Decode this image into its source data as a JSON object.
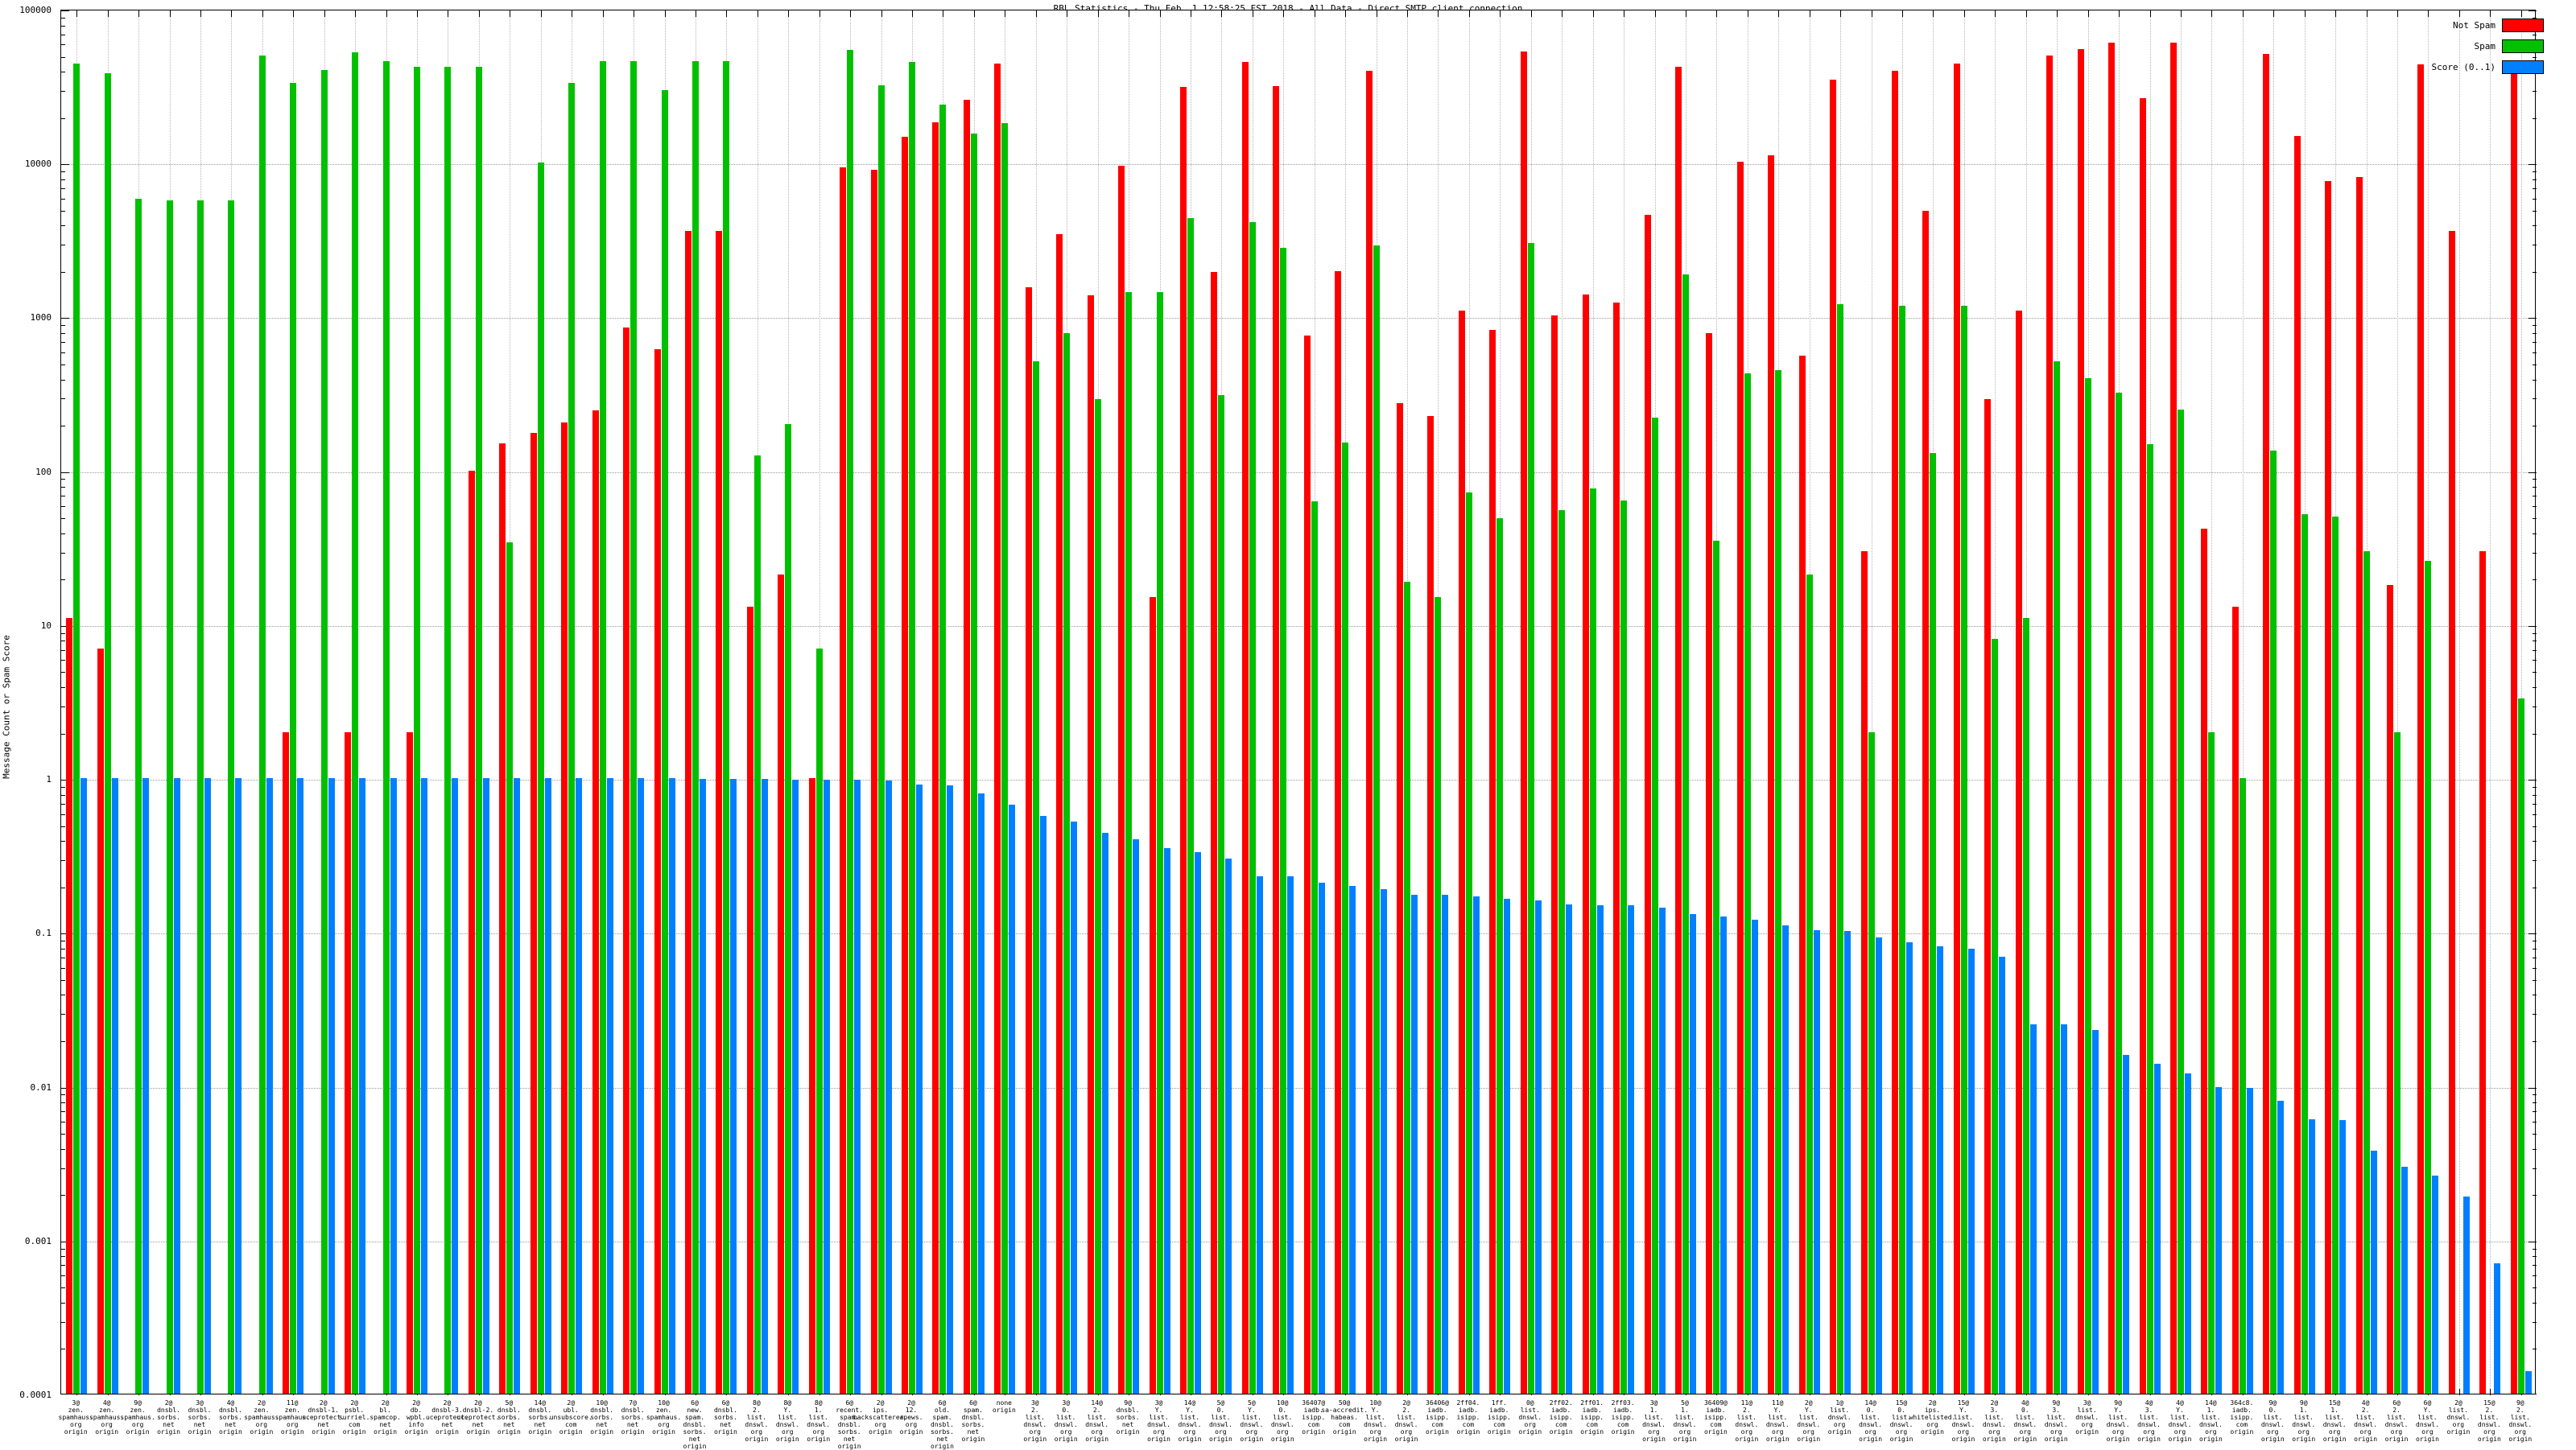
{
  "title": "RBL Statistics - Thu Feb  1 12:58:25 EST 2018 - All Data - Direct SMTP client connection",
  "y_axis": {
    "label": "Message Count or Spam Score",
    "ticks": [
      {
        "label": "100000",
        "value": 100000
      },
      {
        "label": "10000",
        "value": 10000
      },
      {
        "label": "1000",
        "value": 1000
      },
      {
        "label": "100",
        "value": 100
      },
      {
        "label": "10",
        "value": 10
      },
      {
        "label": "1",
        "value": 1
      },
      {
        "label": "0.1",
        "value": 0.1
      },
      {
        "label": "0.01",
        "value": 0.01
      },
      {
        "label": "0.001",
        "value": 0.001
      },
      {
        "label": "0.0001",
        "value": 0.0001
      }
    ]
  },
  "legend": [
    {
      "label": "Not Spam",
      "color": "#ff0000"
    },
    {
      "label": "Spam",
      "color": "#00c000"
    },
    {
      "label": "Score (0..1)",
      "color": "#0080ff"
    }
  ],
  "colors": {
    "not_spam": "#ff0000",
    "spam": "#00c000",
    "score": "#0080ff",
    "grid": "#9a9a9a"
  },
  "chart_data": {
    "type": "bar",
    "y_log": true,
    "ylim": [
      0.0001,
      100000
    ],
    "grid": true,
    "legend_position": "top-right",
    "series_names": [
      "Not Spam",
      "Spam",
      "Score (0..1)"
    ],
    "groups": [
      {
        "label_lines": [
          "3@",
          "zen.",
          "spamhaus.",
          "org",
          "origin"
        ],
        "not_spam": 11,
        "spam": 44000,
        "score": 1.0
      },
      {
        "label_lines": [
          "4@",
          "zen.",
          "spamhaus.",
          "org",
          "origin"
        ],
        "not_spam": 7,
        "spam": 38000,
        "score": 1.0
      },
      {
        "label_lines": [
          "9@",
          "zen.",
          "spamhaus.",
          "org",
          "origin"
        ],
        "not_spam": null,
        "spam": 5800,
        "score": 1.0
      },
      {
        "label_lines": [
          "2@",
          "dnsbl.",
          "sorbs.",
          "net",
          "origin"
        ],
        "not_spam": null,
        "spam": 5700,
        "score": 1.0
      },
      {
        "label_lines": [
          "3@",
          "dnsbl.",
          "sorbs.",
          "net",
          "origin"
        ],
        "not_spam": null,
        "spam": 5700,
        "score": 1.0
      },
      {
        "label_lines": [
          "4@",
          "dnsbl.",
          "sorbs.",
          "net",
          "origin"
        ],
        "not_spam": null,
        "spam": 5700,
        "score": 1.0
      },
      {
        "label_lines": [
          "2@",
          "zen.",
          "spamhaus.",
          "org",
          "origin"
        ],
        "not_spam": null,
        "spam": 50000,
        "score": 1.0
      },
      {
        "label_lines": [
          "11@",
          "zen.",
          "spamhaus.",
          "org",
          "origin"
        ],
        "not_spam": 2,
        "spam": 33000,
        "score": 1.0
      },
      {
        "label_lines": [
          "2@",
          "dnsbl-1.",
          "uceprotect.",
          "net",
          "origin"
        ],
        "not_spam": null,
        "spam": 40000,
        "score": 1.0
      },
      {
        "label_lines": [
          "2@",
          "psbl.",
          "surriel.",
          "com",
          "origin"
        ],
        "not_spam": 2,
        "spam": 52000,
        "score": 1.0
      },
      {
        "label_lines": [
          "2@",
          "bl.",
          "spamcop.",
          "net",
          "origin"
        ],
        "not_spam": null,
        "spam": 46000,
        "score": 1.0
      },
      {
        "label_lines": [
          "2@",
          "db.",
          "wpbl.",
          "info",
          "origin"
        ],
        "not_spam": 2,
        "spam": 42000,
        "score": 1.0
      },
      {
        "label_lines": [
          "2@",
          "dnsbl-3.",
          "uceprotect.",
          "net",
          "origin"
        ],
        "not_spam": null,
        "spam": 42000,
        "score": 1.0
      },
      {
        "label_lines": [
          "2@",
          "dnsbl-2.",
          "uceprotect.",
          "net",
          "origin"
        ],
        "not_spam": 100,
        "spam": 42000,
        "score": 1.0
      },
      {
        "label_lines": [
          "5@",
          "dnsbl.",
          "sorbs.",
          "net",
          "origin"
        ],
        "not_spam": 150,
        "spam": 34,
        "score": 1.0
      },
      {
        "label_lines": [
          "14@",
          "dnsbl.",
          "sorbs.",
          "net",
          "origin"
        ],
        "not_spam": 175,
        "spam": 10000,
        "score": 1.0
      },
      {
        "label_lines": [
          "2@",
          "ubl.",
          "unsubscore.",
          "com",
          "origin"
        ],
        "not_spam": 205,
        "spam": 33000,
        "score": 1.0
      },
      {
        "label_lines": [
          "10@",
          "dnsbl.",
          "sorbs.",
          "net",
          "origin"
        ],
        "not_spam": 245,
        "spam": 46000,
        "score": 1.0
      },
      {
        "label_lines": [
          "7@",
          "dnsbl.",
          "sorbs.",
          "net",
          "origin"
        ],
        "not_spam": 850,
        "spam": 46000,
        "score": 1.0
      },
      {
        "label_lines": [
          "10@",
          "zen.",
          "spamhaus.",
          "org",
          "origin"
        ],
        "not_spam": 615,
        "spam": 29500,
        "score": 1.0
      },
      {
        "label_lines": [
          "6@",
          "new.",
          "spam.",
          "dnsbl.",
          "sorbs.",
          "net",
          "origin"
        ],
        "not_spam": 3600,
        "spam": 46000,
        "score": 0.99
      },
      {
        "label_lines": [
          "6@",
          "dnsbl.",
          "sorbs.",
          "net",
          "origin"
        ],
        "not_spam": 3600,
        "spam": 46000,
        "score": 0.99
      },
      {
        "label_lines": [
          "8@",
          "2.",
          "list.",
          "dnswl.",
          "org",
          "origin"
        ],
        "not_spam": 13,
        "spam": 125,
        "score": 0.99
      },
      {
        "label_lines": [
          "8@",
          "Y.",
          "list.",
          "dnswl.",
          "org",
          "origin"
        ],
        "not_spam": 21,
        "spam": 200,
        "score": 0.98
      },
      {
        "label_lines": [
          "8@",
          "1.",
          "list.",
          "dnswl.",
          "org",
          "origin"
        ],
        "not_spam": 1,
        "spam": 7,
        "score": 0.98
      },
      {
        "label_lines": [
          "6@",
          "recent.",
          "spam.",
          "dnsbl.",
          "sorbs.",
          "net",
          "origin"
        ],
        "not_spam": 9300,
        "spam": 54000,
        "score": 0.98
      },
      {
        "label_lines": [
          "2@",
          "ips.",
          "backscatterer.",
          "org",
          "origin"
        ],
        "not_spam": 9000,
        "spam": 32000,
        "score": 0.97
      },
      {
        "label_lines": [
          "2@",
          "12.",
          "apews.",
          "org",
          "origin"
        ],
        "not_spam": 14700,
        "spam": 45000,
        "score": 0.91
      },
      {
        "label_lines": [
          "6@",
          "old.",
          "spam.",
          "dnsbl.",
          "sorbs.",
          "net",
          "origin"
        ],
        "not_spam": 18400,
        "spam": 24000,
        "score": 0.9
      },
      {
        "label_lines": [
          "6@",
          "spam.",
          "dnsbl.",
          "sorbs.",
          "net",
          "origin"
        ],
        "not_spam": 25600,
        "spam": 15400,
        "score": 0.8
      },
      {
        "label_lines": [
          "none",
          "origin"
        ],
        "not_spam": 44000,
        "spam": 18000,
        "score": 0.67
      },
      {
        "label_lines": [
          "3@",
          "2.",
          "list.",
          "dnswl.",
          "org",
          "origin"
        ],
        "not_spam": 1550,
        "spam": 510,
        "score": 0.57
      },
      {
        "label_lines": [
          "3@",
          "0.",
          "list.",
          "dnswl.",
          "org",
          "origin"
        ],
        "not_spam": 3450,
        "spam": 780,
        "score": 0.52
      },
      {
        "label_lines": [
          "14@",
          "2.",
          "list.",
          "dnswl.",
          "org",
          "origin"
        ],
        "not_spam": 1380,
        "spam": 290,
        "score": 0.44
      },
      {
        "label_lines": [
          "9@",
          "dnsbl.",
          "sorbs.",
          "net",
          "origin"
        ],
        "not_spam": 9600,
        "spam": 1450,
        "score": 0.4
      },
      {
        "label_lines": [
          "3@",
          "Y.",
          "list.",
          "dnswl.",
          "org",
          "origin"
        ],
        "not_spam": 15,
        "spam": 1450,
        "score": 0.35
      },
      {
        "label_lines": [
          "14@",
          "Y.",
          "list.",
          "dnswl.",
          "org",
          "origin"
        ],
        "not_spam": 31000,
        "spam": 4350,
        "score": 0.33
      },
      {
        "label_lines": [
          "5@",
          "0.",
          "list.",
          "dnswl.",
          "org",
          "origin"
        ],
        "not_spam": 1950,
        "spam": 310,
        "score": 0.3
      },
      {
        "label_lines": [
          "5@",
          "Y.",
          "list.",
          "dnswl.",
          "org",
          "origin"
        ],
        "not_spam": 45000,
        "spam": 4100,
        "score": 0.23
      },
      {
        "label_lines": [
          "10@",
          "0.",
          "list.",
          "dnswl.",
          "org",
          "origin"
        ],
        "not_spam": 31600,
        "spam": 2800,
        "score": 0.23
      },
      {
        "label_lines": [
          "36407@",
          "iadb.",
          "isipp.",
          "com",
          "origin"
        ],
        "not_spam": 750,
        "spam": 63,
        "score": 0.21
      },
      {
        "label_lines": [
          "50@",
          "sa-accredit.",
          "habeas.",
          "com",
          "origin"
        ],
        "not_spam": 1970,
        "spam": 152,
        "score": 0.2
      },
      {
        "label_lines": [
          "10@",
          "Y.",
          "list.",
          "dnswl.",
          "org",
          "origin"
        ],
        "not_spam": 39500,
        "spam": 2900,
        "score": 0.19
      },
      {
        "label_lines": [
          "2@",
          "2.",
          "list.",
          "dnswl.",
          "org",
          "origin"
        ],
        "not_spam": 275,
        "spam": 19,
        "score": 0.175
      },
      {
        "label_lines": [
          "36406@",
          "iadb.",
          "isipp.",
          "com",
          "origin"
        ],
        "not_spam": 225,
        "spam": 15,
        "score": 0.174
      },
      {
        "label_lines": [
          "2ff04.",
          "iadb.",
          "isipp.",
          "com",
          "origin"
        ],
        "not_spam": 1100,
        "spam": 72,
        "score": 0.171
      },
      {
        "label_lines": [
          "1ff.",
          "iadb.",
          "isipp.",
          "com",
          "origin"
        ],
        "not_spam": 820,
        "spam": 49,
        "score": 0.164
      },
      {
        "label_lines": [
          "0@",
          "list.",
          "dnswl.",
          "org",
          "origin"
        ],
        "not_spam": 52700,
        "spam": 3000,
        "score": 0.16
      },
      {
        "label_lines": [
          "2ff02.",
          "iadb.",
          "isipp.",
          "com",
          "origin"
        ],
        "not_spam": 1020,
        "spam": 55,
        "score": 0.152
      },
      {
        "label_lines": [
          "2ff01.",
          "iadb.",
          "isipp.",
          "com",
          "origin"
        ],
        "not_spam": 1400,
        "spam": 76,
        "score": 0.15
      },
      {
        "label_lines": [
          "2ff03.",
          "iadb.",
          "isipp.",
          "com",
          "origin"
        ],
        "not_spam": 1230,
        "spam": 64,
        "score": 0.15
      },
      {
        "label_lines": [
          "3@",
          "1.",
          "list.",
          "dnswl.",
          "org",
          "origin"
        ],
        "not_spam": 4600,
        "spam": 220,
        "score": 0.144
      },
      {
        "label_lines": [
          "5@",
          "1.",
          "list.",
          "dnswl.",
          "org",
          "origin"
        ],
        "not_spam": 41800,
        "spam": 1870,
        "score": 0.131
      },
      {
        "label_lines": [
          "36409@",
          "iadb.",
          "isipp.",
          "com",
          "origin"
        ],
        "not_spam": 780,
        "spam": 35,
        "score": 0.126
      },
      {
        "label_lines": [
          "11@",
          "2.",
          "list.",
          "dnswl.",
          "org",
          "origin"
        ],
        "not_spam": 10200,
        "spam": 430,
        "score": 0.12
      },
      {
        "label_lines": [
          "11@",
          "Y.",
          "list.",
          "dnswl.",
          "org",
          "origin"
        ],
        "not_spam": 11200,
        "spam": 450,
        "score": 0.111
      },
      {
        "label_lines": [
          "2@",
          "Y.",
          "list.",
          "dnswl.",
          "org",
          "origin"
        ],
        "not_spam": 560,
        "spam": 21,
        "score": 0.103
      },
      {
        "label_lines": [
          "1@",
          "list.",
          "dnswl.",
          "org",
          "origin"
        ],
        "not_spam": 34600,
        "spam": 1200,
        "score": 0.102
      },
      {
        "label_lines": [
          "14@",
          "0.",
          "list.",
          "dnswl.",
          "org",
          "origin"
        ],
        "not_spam": 30,
        "spam": 2,
        "score": 0.092
      },
      {
        "label_lines": [
          "15@",
          "0.",
          "list.",
          "dnswl.",
          "org",
          "origin"
        ],
        "not_spam": 39500,
        "spam": 1170,
        "score": 0.086
      },
      {
        "label_lines": [
          "2@",
          "ips.",
          "whitelisted.",
          "org",
          "origin"
        ],
        "not_spam": 4850,
        "spam": 130,
        "score": 0.081
      },
      {
        "label_lines": [
          "15@",
          "Y.",
          "list.",
          "dnswl.",
          "org",
          "origin"
        ],
        "not_spam": 44300,
        "spam": 1180,
        "score": 0.078
      },
      {
        "label_lines": [
          "2@",
          "3.",
          "list.",
          "dnswl.",
          "org",
          "origin"
        ],
        "not_spam": 290,
        "spam": 8,
        "score": 0.069
      },
      {
        "label_lines": [
          "4@",
          "0.",
          "list.",
          "dnswl.",
          "org",
          "origin"
        ],
        "not_spam": 1100,
        "spam": 11,
        "score": 0.025
      },
      {
        "label_lines": [
          "9@",
          "3.",
          "list.",
          "dnswl.",
          "org",
          "origin"
        ],
        "not_spam": 50000,
        "spam": 510,
        "score": 0.025
      },
      {
        "label_lines": [
          "3@",
          "list.",
          "dnswl.",
          "org",
          "origin"
        ],
        "not_spam": 55000,
        "spam": 400,
        "score": 0.023
      },
      {
        "label_lines": [
          "9@",
          "Y.",
          "list.",
          "dnswl.",
          "org",
          "origin"
        ],
        "not_spam": 60000,
        "spam": 320,
        "score": 0.016
      },
      {
        "label_lines": [
          "4@",
          "3.",
          "list.",
          "dnswl.",
          "org",
          "origin"
        ],
        "not_spam": 26300,
        "spam": 148,
        "score": 0.014
      },
      {
        "label_lines": [
          "4@",
          "Y.",
          "list.",
          "dnswl.",
          "org",
          "origin"
        ],
        "not_spam": 60000,
        "spam": 250,
        "score": 0.012
      },
      {
        "label_lines": [
          "14@",
          "1.",
          "list.",
          "dnswl.",
          "org",
          "origin"
        ],
        "not_spam": 42,
        "spam": 2,
        "score": 0.0098
      },
      {
        "label_lines": [
          "364c8.",
          "iadb.",
          "isipp.",
          "com",
          "origin"
        ],
        "not_spam": 13,
        "spam": 1,
        "score": 0.0097
      },
      {
        "label_lines": [
          "9@",
          "0.",
          "list.",
          "dnswl.",
          "org",
          "origin"
        ],
        "not_spam": 51000,
        "spam": 135,
        "score": 0.008
      },
      {
        "label_lines": [
          "9@",
          "1.",
          "list.",
          "dnswl.",
          "org",
          "origin"
        ],
        "not_spam": 14900,
        "spam": 52,
        "score": 0.0061
      },
      {
        "label_lines": [
          "15@",
          "1.",
          "list.",
          "dnswl.",
          "org",
          "origin"
        ],
        "not_spam": 7600,
        "spam": 50,
        "score": 0.006
      },
      {
        "label_lines": [
          "4@",
          "2.",
          "list.",
          "dnswl.",
          "org",
          "origin"
        ],
        "not_spam": 8100,
        "spam": 30,
        "score": 0.0038
      },
      {
        "label_lines": [
          "6@",
          "2.",
          "list.",
          "dnswl.",
          "org",
          "origin"
        ],
        "not_spam": 18,
        "spam": 2,
        "score": 0.003
      },
      {
        "label_lines": [
          "6@",
          "Y.",
          "list.",
          "dnswl.",
          "org",
          "origin"
        ],
        "not_spam": 43500,
        "spam": 26,
        "score": 0.0026
      },
      {
        "label_lines": [
          "2@",
          "list.",
          "dnswl.",
          "org",
          "origin"
        ],
        "not_spam": 3600,
        "spam": null,
        "score": 0.0019
      },
      {
        "label_lines": [
          "15@",
          "2.",
          "list.",
          "dnswl.",
          "org",
          "origin"
        ],
        "not_spam": 30,
        "spam": null,
        "score": 0.0007
      },
      {
        "label_lines": [
          "9@",
          "2.",
          "list.",
          "dnswl.",
          "org",
          "origin"
        ],
        "not_spam": 39500,
        "spam": 3.3,
        "score": 0.00014
      }
    ]
  }
}
